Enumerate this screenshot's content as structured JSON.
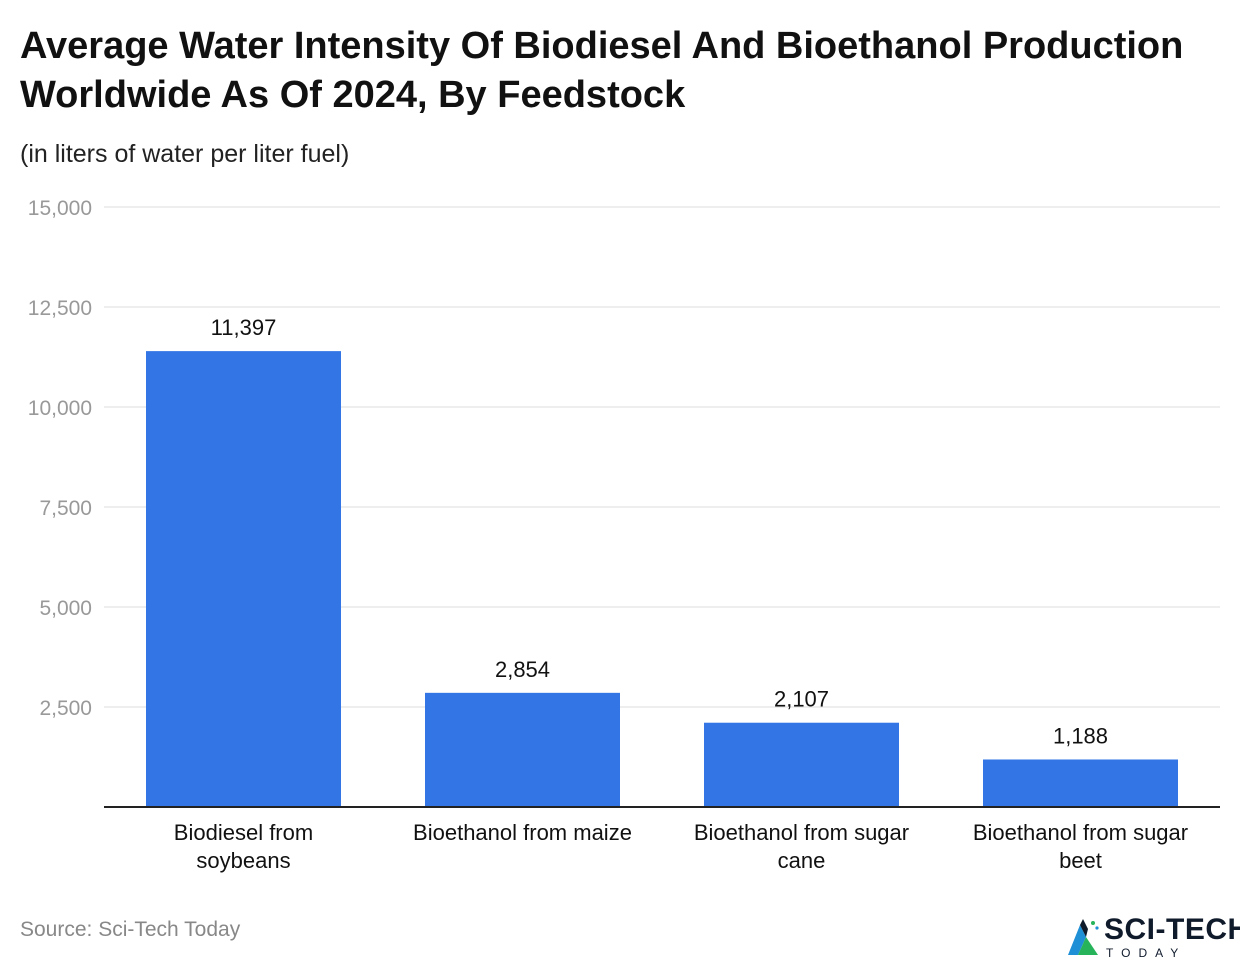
{
  "header": {
    "title": "Average Water Intensity Of Biodiesel And Bioethanol Production Worldwide As Of 2024, By Feedstock",
    "subtitle": "(in liters of water per liter fuel)"
  },
  "footer": {
    "source": "Source: Sci-Tech Today",
    "logo_text": "SCI-TECH",
    "logo_sub": "TODAY"
  },
  "colors": {
    "bar": "#3475e5",
    "grid": "#dddddd",
    "axis_tick": "#999999",
    "baseline": "#222222",
    "label": "#111111"
  },
  "chart_data": {
    "type": "bar",
    "title": "Average Water Intensity Of Biodiesel And Bioethanol Production Worldwide As Of 2024, By Feedstock",
    "subtitle": "(in liters of water per liter fuel)",
    "categories": [
      [
        "Biodiesel from",
        "soybeans"
      ],
      [
        "Bioethanol from maize"
      ],
      [
        "Bioethanol from sugar",
        "cane"
      ],
      [
        "Bioethanol from sugar",
        "beet"
      ]
    ],
    "values": [
      11397,
      2854,
      2107,
      1188
    ],
    "value_labels": [
      "11,397",
      "2,854",
      "2,107",
      "1,188"
    ],
    "ylim": [
      0,
      15000
    ],
    "yticks": [
      2500,
      5000,
      7500,
      10000,
      12500,
      15000
    ],
    "ytick_labels": [
      "2,500",
      "5,000",
      "7,500",
      "10,000",
      "12,500",
      "15,000"
    ],
    "grid": true,
    "legend": "none"
  }
}
